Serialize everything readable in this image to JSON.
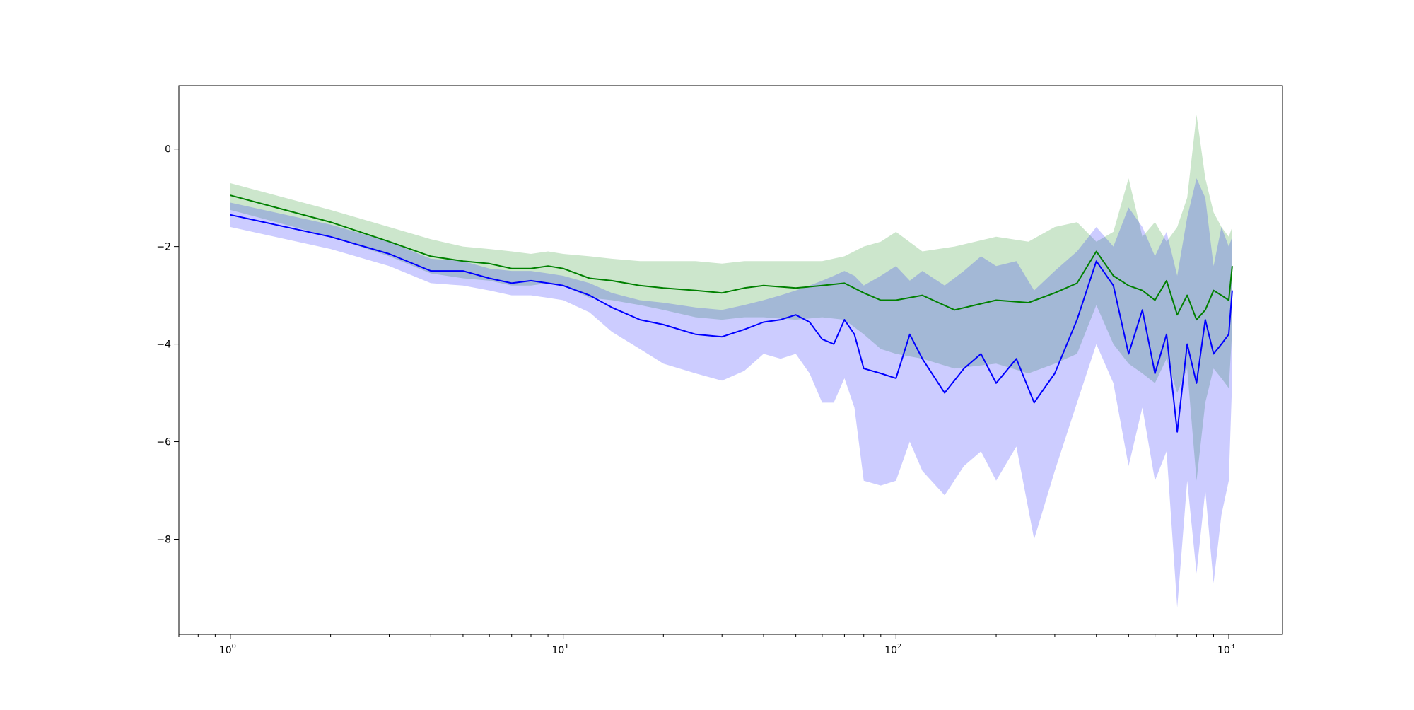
{
  "chart_data": {
    "type": "line",
    "title": "",
    "xlabel": "",
    "ylabel": "",
    "x_scale": "log",
    "xlim": [
      0.7,
      1450
    ],
    "ylim": [
      -9.95,
      1.3
    ],
    "grid": false,
    "legend": "none",
    "x_ticks": [
      {
        "value": 1,
        "base": "10",
        "exp": "0"
      },
      {
        "value": 10,
        "base": "10",
        "exp": "1"
      },
      {
        "value": 100,
        "base": "10",
        "exp": "2"
      },
      {
        "value": 1000,
        "base": "10",
        "exp": "3"
      }
    ],
    "y_ticks": [
      {
        "value": 0,
        "label": "0"
      },
      {
        "value": -2,
        "label": "−2"
      },
      {
        "value": -4,
        "label": "−4"
      },
      {
        "value": -6,
        "label": "−6"
      },
      {
        "value": -8,
        "label": "−8"
      }
    ],
    "series": [
      {
        "color": "#008000",
        "band_color": "#008000",
        "band_opacity": 0.2,
        "x": [
          1,
          2,
          3,
          4,
          5,
          6,
          7,
          8,
          9,
          10,
          12,
          14,
          17,
          20,
          25,
          30,
          35,
          40,
          50,
          60,
          70,
          80,
          90,
          100,
          120,
          150,
          200,
          250,
          300,
          350,
          400,
          450,
          500,
          550,
          600,
          650,
          700,
          750,
          800,
          850,
          900,
          950,
          1000,
          1024
        ],
        "mean": [
          -0.95,
          -1.5,
          -1.9,
          -2.2,
          -2.3,
          -2.35,
          -2.45,
          -2.45,
          -2.4,
          -2.45,
          -2.65,
          -2.7,
          -2.8,
          -2.85,
          -2.9,
          -2.95,
          -2.85,
          -2.8,
          -2.85,
          -2.8,
          -2.75,
          -2.95,
          -3.1,
          -3.1,
          -3.0,
          -3.3,
          -3.1,
          -3.15,
          -2.95,
          -2.75,
          -2.1,
          -2.6,
          -2.8,
          -2.9,
          -3.1,
          -2.7,
          -3.4,
          -3.0,
          -3.5,
          -3.3,
          -2.9,
          -3.0,
          -3.1,
          -2.4
        ],
        "upper": [
          -0.7,
          -1.25,
          -1.6,
          -1.85,
          -2.0,
          -2.05,
          -2.1,
          -2.15,
          -2.1,
          -2.15,
          -2.2,
          -2.25,
          -2.3,
          -2.3,
          -2.3,
          -2.35,
          -2.3,
          -2.3,
          -2.3,
          -2.3,
          -2.2,
          -2.0,
          -1.9,
          -1.7,
          -2.1,
          -2.0,
          -1.8,
          -1.9,
          -1.6,
          -1.5,
          -1.9,
          -1.7,
          -0.6,
          -1.8,
          -1.5,
          -1.9,
          -1.6,
          -1.0,
          0.7,
          -0.6,
          -1.3,
          -1.6,
          -1.8,
          -1.6
        ],
        "lower": [
          -1.25,
          -1.8,
          -2.2,
          -2.55,
          -2.65,
          -2.7,
          -2.8,
          -2.8,
          -2.75,
          -2.8,
          -3.05,
          -3.1,
          -3.2,
          -3.3,
          -3.45,
          -3.5,
          -3.45,
          -3.45,
          -3.5,
          -3.45,
          -3.5,
          -3.8,
          -4.1,
          -4.2,
          -4.3,
          -4.5,
          -4.4,
          -4.6,
          -4.4,
          -4.2,
          -3.2,
          -4.0,
          -4.4,
          -4.6,
          -4.8,
          -4.3,
          -5.0,
          -4.5,
          -6.8,
          -5.2,
          -4.5,
          -4.7,
          -4.9,
          -3.7
        ]
      },
      {
        "color": "#0000ff",
        "band_color": "#0000ff",
        "band_opacity": 0.2,
        "x": [
          1,
          2,
          3,
          4,
          5,
          6,
          7,
          8,
          9,
          10,
          12,
          14,
          17,
          20,
          25,
          30,
          35,
          40,
          45,
          50,
          55,
          60,
          65,
          70,
          75,
          80,
          90,
          100,
          110,
          120,
          140,
          160,
          180,
          200,
          230,
          260,
          300,
          350,
          400,
          450,
          500,
          550,
          600,
          650,
          700,
          750,
          800,
          850,
          900,
          950,
          1000,
          1024
        ],
        "mean": [
          -1.35,
          -1.8,
          -2.15,
          -2.5,
          -2.5,
          -2.65,
          -2.75,
          -2.7,
          -2.75,
          -2.8,
          -3.0,
          -3.25,
          -3.5,
          -3.6,
          -3.8,
          -3.85,
          -3.7,
          -3.55,
          -3.5,
          -3.4,
          -3.55,
          -3.9,
          -4.0,
          -3.5,
          -3.8,
          -4.5,
          -4.6,
          -4.7,
          -3.8,
          -4.3,
          -5.0,
          -4.5,
          -4.2,
          -4.8,
          -4.3,
          -5.2,
          -4.6,
          -3.5,
          -2.3,
          -2.8,
          -4.2,
          -3.3,
          -4.6,
          -3.8,
          -5.8,
          -4.0,
          -4.8,
          -3.5,
          -4.2,
          -4.0,
          -3.8,
          -2.9
        ],
        "upper": [
          -1.1,
          -1.55,
          -1.9,
          -2.25,
          -2.3,
          -2.45,
          -2.5,
          -2.5,
          -2.55,
          -2.6,
          -2.75,
          -2.95,
          -3.1,
          -3.15,
          -3.25,
          -3.3,
          -3.2,
          -3.1,
          -3.0,
          -2.9,
          -2.8,
          -2.7,
          -2.6,
          -2.5,
          -2.6,
          -2.8,
          -2.6,
          -2.4,
          -2.7,
          -2.5,
          -2.8,
          -2.5,
          -2.2,
          -2.4,
          -2.3,
          -2.9,
          -2.5,
          -2.1,
          -1.6,
          -2.0,
          -1.2,
          -1.6,
          -2.2,
          -1.7,
          -2.6,
          -1.4,
          -0.6,
          -1.0,
          -2.4,
          -1.6,
          -2.0,
          -1.8
        ],
        "lower": [
          -1.6,
          -2.05,
          -2.4,
          -2.75,
          -2.8,
          -2.9,
          -3.0,
          -3.0,
          -3.05,
          -3.1,
          -3.35,
          -3.75,
          -4.1,
          -4.4,
          -4.6,
          -4.75,
          -4.55,
          -4.2,
          -4.3,
          -4.2,
          -4.6,
          -5.2,
          -5.2,
          -4.7,
          -5.3,
          -6.8,
          -6.9,
          -6.8,
          -6.0,
          -6.6,
          -7.1,
          -6.5,
          -6.2,
          -6.8,
          -6.1,
          -8.0,
          -6.6,
          -5.2,
          -4.0,
          -4.8,
          -6.5,
          -5.3,
          -6.8,
          -6.2,
          -9.4,
          -6.8,
          -8.7,
          -7.0,
          -8.9,
          -7.5,
          -6.8,
          -4.7
        ]
      }
    ]
  }
}
